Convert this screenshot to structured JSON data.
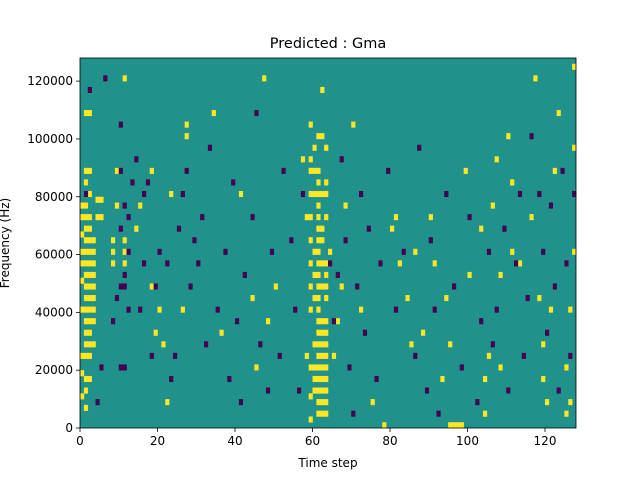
{
  "chart_data": {
    "type": "heatmap",
    "title": "Predicted : Gma",
    "xlabel": "Time step",
    "ylabel": "Frequency (Hz)",
    "xlim": [
      0,
      128
    ],
    "ylim": [
      0,
      128000
    ],
    "x_ticks": [
      0,
      20,
      40,
      60,
      80,
      100,
      120
    ],
    "y_ticks": [
      0,
      20000,
      40000,
      60000,
      80000,
      100000,
      120000
    ],
    "y_tick_labels": [
      "0",
      "20000",
      "40000",
      "60000",
      "80000",
      "100000",
      "120000"
    ],
    "n_time_steps": 128,
    "n_freq_bins": 64,
    "bin_height_hz": 2000,
    "colormap": {
      "low": "#440154",
      "mid": "#21918c",
      "high": "#fde725"
    },
    "background_value": "mid",
    "high_cells": [
      [
        0,
        5
      ],
      [
        0,
        9
      ],
      [
        0,
        12
      ],
      [
        0,
        20
      ],
      [
        0,
        25
      ],
      [
        0,
        28
      ],
      [
        0,
        30
      ],
      [
        0,
        33
      ],
      [
        0,
        36
      ],
      [
        0,
        38
      ],
      [
        1,
        3
      ],
      [
        1,
        6
      ],
      [
        1,
        8
      ],
      [
        1,
        12
      ],
      [
        1,
        14
      ],
      [
        1,
        16
      ],
      [
        1,
        18
      ],
      [
        1,
        20
      ],
      [
        1,
        22
      ],
      [
        1,
        24
      ],
      [
        1,
        26
      ],
      [
        1,
        28
      ],
      [
        1,
        30
      ],
      [
        1,
        32
      ],
      [
        1,
        34
      ],
      [
        1,
        36
      ],
      [
        1,
        38
      ],
      [
        1,
        40
      ],
      [
        1,
        42
      ],
      [
        1,
        44
      ],
      [
        1,
        54
      ],
      [
        2,
        8
      ],
      [
        2,
        12
      ],
      [
        2,
        14
      ],
      [
        2,
        16
      ],
      [
        2,
        18
      ],
      [
        2,
        20
      ],
      [
        2,
        22
      ],
      [
        2,
        24
      ],
      [
        2,
        26
      ],
      [
        2,
        28
      ],
      [
        2,
        30
      ],
      [
        2,
        32
      ],
      [
        2,
        34
      ],
      [
        2,
        36
      ],
      [
        2,
        40
      ],
      [
        2,
        44
      ],
      [
        2,
        54
      ],
      [
        3,
        14
      ],
      [
        3,
        18
      ],
      [
        3,
        20
      ],
      [
        3,
        22
      ],
      [
        3,
        24
      ],
      [
        3,
        26
      ],
      [
        3,
        28
      ],
      [
        3,
        30
      ],
      [
        3,
        32
      ],
      [
        4,
        36
      ],
      [
        4,
        39
      ],
      [
        5,
        36
      ],
      [
        5,
        39
      ],
      [
        8,
        28
      ],
      [
        8,
        30
      ],
      [
        8,
        32
      ],
      [
        9,
        38
      ],
      [
        9,
        44
      ],
      [
        11,
        28
      ],
      [
        11,
        30
      ],
      [
        11,
        32
      ],
      [
        11,
        60
      ],
      [
        14,
        34
      ],
      [
        15,
        38
      ],
      [
        18,
        24
      ],
      [
        18,
        44
      ],
      [
        19,
        16
      ],
      [
        20,
        20
      ],
      [
        21,
        14
      ],
      [
        22,
        4
      ],
      [
        23,
        40
      ],
      [
        26,
        20
      ],
      [
        27,
        50
      ],
      [
        27,
        52
      ],
      [
        34,
        54
      ],
      [
        36,
        16
      ],
      [
        41,
        40
      ],
      [
        44,
        22
      ],
      [
        45,
        10
      ],
      [
        47,
        60
      ],
      [
        48,
        18
      ],
      [
        50,
        24
      ],
      [
        57,
        46
      ],
      [
        58,
        36
      ],
      [
        58,
        12
      ],
      [
        59,
        1
      ],
      [
        59,
        5
      ],
      [
        59,
        10
      ],
      [
        59,
        20
      ],
      [
        59,
        24
      ],
      [
        59,
        28
      ],
      [
        59,
        32
      ],
      [
        59,
        36
      ],
      [
        59,
        40
      ],
      [
        59,
        44
      ],
      [
        59,
        46
      ],
      [
        59,
        52
      ],
      [
        60,
        6
      ],
      [
        60,
        8
      ],
      [
        60,
        10
      ],
      [
        60,
        14
      ],
      [
        60,
        22
      ],
      [
        60,
        26
      ],
      [
        60,
        30
      ],
      [
        60,
        40
      ],
      [
        60,
        44
      ],
      [
        60,
        48
      ],
      [
        61,
        2
      ],
      [
        61,
        4
      ],
      [
        61,
        6
      ],
      [
        61,
        8
      ],
      [
        61,
        10
      ],
      [
        61,
        12
      ],
      [
        61,
        14
      ],
      [
        61,
        16
      ],
      [
        61,
        18
      ],
      [
        61,
        20
      ],
      [
        61,
        22
      ],
      [
        61,
        24
      ],
      [
        61,
        26
      ],
      [
        61,
        28
      ],
      [
        61,
        30
      ],
      [
        61,
        32
      ],
      [
        61,
        34
      ],
      [
        61,
        36
      ],
      [
        61,
        38
      ],
      [
        61,
        40
      ],
      [
        61,
        42
      ],
      [
        61,
        44
      ],
      [
        61,
        50
      ],
      [
        62,
        2
      ],
      [
        62,
        4
      ],
      [
        62,
        6
      ],
      [
        62,
        8
      ],
      [
        62,
        10
      ],
      [
        62,
        12
      ],
      [
        62,
        14
      ],
      [
        62,
        16
      ],
      [
        62,
        18
      ],
      [
        62,
        24
      ],
      [
        62,
        28
      ],
      [
        62,
        32
      ],
      [
        62,
        34
      ],
      [
        62,
        40
      ],
      [
        62,
        50
      ],
      [
        62,
        58
      ],
      [
        63,
        2
      ],
      [
        63,
        4
      ],
      [
        63,
        6
      ],
      [
        63,
        8
      ],
      [
        63,
        10
      ],
      [
        63,
        12
      ],
      [
        63,
        14
      ],
      [
        63,
        16
      ],
      [
        63,
        18
      ],
      [
        63,
        22
      ],
      [
        63,
        24
      ],
      [
        63,
        26
      ],
      [
        63,
        28
      ],
      [
        63,
        36
      ],
      [
        63,
        40
      ],
      [
        63,
        42
      ],
      [
        63,
        48
      ],
      [
        64,
        30
      ],
      [
        65,
        12
      ],
      [
        66,
        18
      ],
      [
        67,
        24
      ],
      [
        68,
        38
      ],
      [
        70,
        52
      ],
      [
        72,
        20
      ],
      [
        75,
        4
      ],
      [
        78,
        0
      ],
      [
        80,
        34
      ],
      [
        81,
        36
      ],
      [
        82,
        28
      ],
      [
        84,
        22
      ],
      [
        85,
        14
      ],
      [
        86,
        30
      ],
      [
        88,
        16
      ],
      [
        90,
        36
      ],
      [
        91,
        28
      ],
      [
        93,
        8
      ],
      [
        94,
        22
      ],
      [
        95,
        14
      ],
      [
        95,
        0
      ],
      [
        96,
        0
      ],
      [
        97,
        0
      ],
      [
        98,
        0
      ],
      [
        99,
        44
      ],
      [
        100,
        26
      ],
      [
        103,
        34
      ],
      [
        104,
        2
      ],
      [
        104,
        8
      ],
      [
        105,
        12
      ],
      [
        106,
        38
      ],
      [
        107,
        46
      ],
      [
        108,
        10
      ],
      [
        108,
        26
      ],
      [
        110,
        50
      ],
      [
        111,
        42
      ],
      [
        111,
        30
      ],
      [
        113,
        28
      ],
      [
        116,
        36
      ],
      [
        117,
        60
      ],
      [
        118,
        22
      ],
      [
        119,
        8
      ],
      [
        119,
        14
      ],
      [
        120,
        4
      ],
      [
        121,
        20
      ],
      [
        122,
        44
      ],
      [
        123,
        54
      ],
      [
        125,
        2
      ],
      [
        125,
        10
      ],
      [
        126,
        4
      ],
      [
        126,
        20
      ],
      [
        127,
        48
      ],
      [
        127,
        62
      ],
      [
        127,
        30
      ]
    ],
    "low_cells": [
      [
        1,
        40
      ],
      [
        2,
        58
      ],
      [
        4,
        4
      ],
      [
        5,
        10
      ],
      [
        6,
        60
      ],
      [
        8,
        18
      ],
      [
        9,
        22
      ],
      [
        10,
        10
      ],
      [
        10,
        24
      ],
      [
        10,
        34
      ],
      [
        10,
        44
      ],
      [
        10,
        52
      ],
      [
        11,
        10
      ],
      [
        11,
        24
      ],
      [
        11,
        26
      ],
      [
        11,
        38
      ],
      [
        12,
        20
      ],
      [
        12,
        30
      ],
      [
        12,
        36
      ],
      [
        13,
        42
      ],
      [
        14,
        46
      ],
      [
        15,
        20
      ],
      [
        16,
        28
      ],
      [
        16,
        40
      ],
      [
        17,
        42
      ],
      [
        18,
        12
      ],
      [
        19,
        24
      ],
      [
        20,
        30
      ],
      [
        22,
        28
      ],
      [
        23,
        8
      ],
      [
        24,
        12
      ],
      [
        25,
        34
      ],
      [
        26,
        40
      ],
      [
        27,
        44
      ],
      [
        28,
        24
      ],
      [
        29,
        32
      ],
      [
        30,
        28
      ],
      [
        31,
        36
      ],
      [
        32,
        14
      ],
      [
        33,
        48
      ],
      [
        35,
        20
      ],
      [
        37,
        30
      ],
      [
        38,
        8
      ],
      [
        39,
        42
      ],
      [
        40,
        18
      ],
      [
        41,
        4
      ],
      [
        42,
        26
      ],
      [
        44,
        36
      ],
      [
        45,
        54
      ],
      [
        46,
        14
      ],
      [
        48,
        6
      ],
      [
        49,
        30
      ],
      [
        51,
        12
      ],
      [
        52,
        44
      ],
      [
        54,
        32
      ],
      [
        55,
        20
      ],
      [
        56,
        6
      ],
      [
        57,
        40
      ],
      [
        64,
        28
      ],
      [
        65,
        18
      ],
      [
        66,
        26
      ],
      [
        67,
        46
      ],
      [
        68,
        32
      ],
      [
        69,
        10
      ],
      [
        70,
        2
      ],
      [
        71,
        24
      ],
      [
        72,
        40
      ],
      [
        73,
        16
      ],
      [
        74,
        34
      ],
      [
        76,
        8
      ],
      [
        77,
        28
      ],
      [
        79,
        44
      ],
      [
        81,
        20
      ],
      [
        83,
        30
      ],
      [
        86,
        12
      ],
      [
        87,
        48
      ],
      [
        89,
        6
      ],
      [
        90,
        32
      ],
      [
        91,
        20
      ],
      [
        92,
        2
      ],
      [
        94,
        40
      ],
      [
        96,
        24
      ],
      [
        98,
        10
      ],
      [
        100,
        36
      ],
      [
        102,
        4
      ],
      [
        103,
        18
      ],
      [
        105,
        30
      ],
      [
        106,
        14
      ],
      [
        107,
        20
      ],
      [
        109,
        34
      ],
      [
        110,
        6
      ],
      [
        112,
        28
      ],
      [
        113,
        40
      ],
      [
        114,
        12
      ],
      [
        115,
        22
      ],
      [
        116,
        50
      ],
      [
        118,
        40
      ],
      [
        119,
        30
      ],
      [
        120,
        16
      ],
      [
        121,
        38
      ],
      [
        122,
        24
      ],
      [
        123,
        6
      ],
      [
        124,
        44
      ],
      [
        125,
        28
      ],
      [
        126,
        12
      ],
      [
        127,
        40
      ]
    ]
  }
}
